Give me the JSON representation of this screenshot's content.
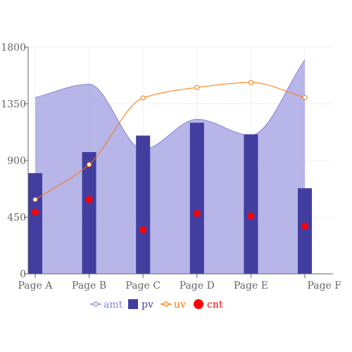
{
  "chart_data": {
    "type": "composed",
    "categories": [
      "Page A",
      "Page B",
      "Page C",
      "Page D",
      "Page E",
      "Page F"
    ],
    "ylim": [
      0,
      1800
    ],
    "yticks": [
      0,
      450,
      900,
      1350,
      1800
    ],
    "grid": true,
    "legend_placement": "bottom-center",
    "series": [
      {
        "name": "amt",
        "type": "area",
        "color": "#8884d8",
        "values": [
          1400,
          1506,
          989,
          1228,
          1100,
          1700
        ]
      },
      {
        "name": "pv",
        "type": "bar",
        "color": "#413ea0",
        "values": [
          800,
          967,
          1098,
          1200,
          1108,
          680
        ]
      },
      {
        "name": "uv",
        "type": "line",
        "color": "#ff7300",
        "values": [
          590,
          868,
          1397,
          1480,
          1520,
          1400
        ]
      },
      {
        "name": "cnt",
        "type": "scatter",
        "color": "#ff0000",
        "values": [
          490,
          590,
          350,
          480,
          460,
          380
        ]
      }
    ]
  }
}
